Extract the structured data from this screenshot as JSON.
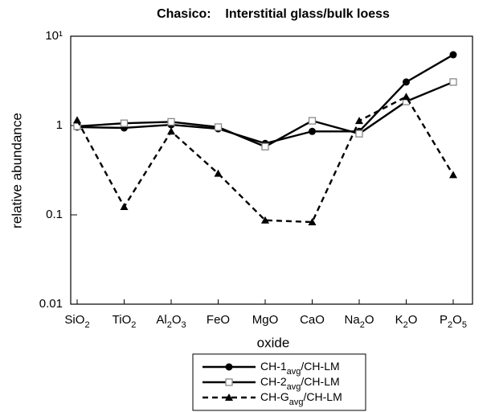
{
  "chart_data": {
    "type": "line",
    "title": "Chasico:    Interstitial glass/bulk loess",
    "x_label": "oxide",
    "y_label": "relative abundance",
    "categories": [
      "SiO2",
      "TiO2",
      "Al2O3",
      "FeO",
      "MgO",
      "CaO",
      "Na2O",
      "K2O",
      "P2O5"
    ],
    "log_y": true,
    "ylim": [
      0.01,
      10
    ],
    "yticks": [
      0.01,
      0.1,
      1,
      {
        "value": 10,
        "label": "10¹"
      }
    ],
    "legend": "bottom",
    "series": [
      {
        "name": "CH-1avg/CH-LM",
        "color": "#000000",
        "marker": "circle",
        "marker_color": "#000000",
        "line_style": "solid",
        "values": [
          0.96,
          0.94,
          1.02,
          0.92,
          0.63,
          0.86,
          0.86,
          3.07,
          6.2
        ]
      },
      {
        "name": "CH-2avg/CH-LM",
        "color": "#000000",
        "marker": "square",
        "marker_color": "#888888",
        "line_style": "solid",
        "values": [
          0.98,
          1.06,
          1.1,
          0.96,
          0.58,
          1.13,
          0.81,
          1.86,
          3.07
        ]
      },
      {
        "name": "CH-Gavg/CH-LM",
        "color": "#000000",
        "marker": "triangle",
        "marker_color": "#000000",
        "line_style": "dashed",
        "values": [
          1.15,
          0.123,
          0.86,
          0.29,
          0.087,
          0.083,
          1.13,
          2.1,
          0.28
        ]
      }
    ]
  }
}
